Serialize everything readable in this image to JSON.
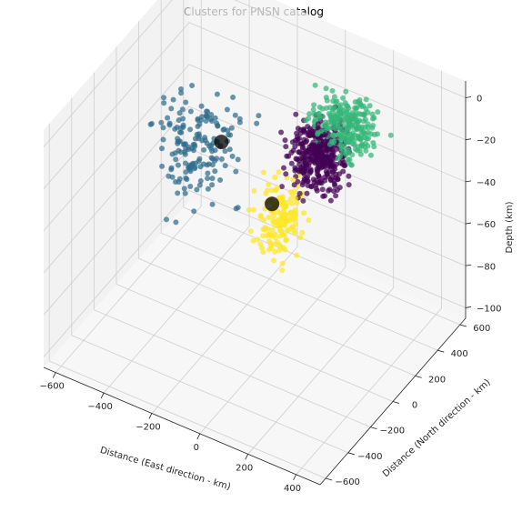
{
  "chart_data": {
    "type": "scatter3d",
    "title": "Clusters for PNSN catalog",
    "xlabel": "Distance (East direction - km)",
    "ylabel": "Distance (North direction - km)",
    "zlabel": "Depth (km)",
    "xlim": [
      -650,
      500
    ],
    "ylim": [
      -650,
      650
    ],
    "zlim": [
      -105,
      8
    ],
    "xticks": [
      -600,
      -400,
      -200,
      0,
      200,
      400
    ],
    "yticks": [
      -600,
      -400,
      -200,
      0,
      200,
      400,
      600
    ],
    "zticks": [
      0,
      -20,
      -40,
      -60,
      -80,
      -100
    ],
    "grid": true,
    "clusters": [
      {
        "color": "#2f6c8e",
        "center": [
          -380,
          150,
          -35
        ],
        "spread": [
          130,
          170,
          20
        ],
        "count": 170,
        "seed": 11
      },
      {
        "color": "#fde725",
        "center": [
          0,
          50,
          -45
        ],
        "spread": [
          70,
          110,
          14
        ],
        "count": 160,
        "seed": 23
      },
      {
        "color": "#440154",
        "center": [
          90,
          230,
          -22
        ],
        "spread": [
          90,
          110,
          11
        ],
        "count": 380,
        "seed": 37
      },
      {
        "color": "#35b779",
        "center": [
          160,
          300,
          -8
        ],
        "spread": [
          110,
          120,
          9
        ],
        "count": 260,
        "seed": 51
      }
    ],
    "centroids": [
      {
        "color": "#000000",
        "x": -330,
        "y": 250,
        "z": -37
      },
      {
        "color": "#000000",
        "x": -40,
        "y": 80,
        "z": -42
      }
    ]
  }
}
